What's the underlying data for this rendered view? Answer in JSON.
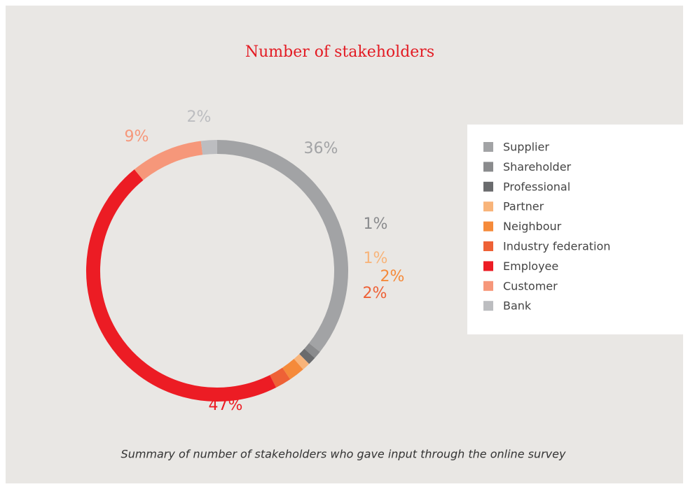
{
  "chart_data": {
    "type": "donut",
    "title": "Number of stakeholders",
    "categories": [
      "Supplier",
      "Shareholder",
      "Professional",
      "Partner",
      "Neighbour",
      "Industry federation",
      "Employee",
      "Customer",
      "Bank"
    ],
    "values": [
      36,
      1,
      1,
      1,
      2,
      2,
      47,
      9,
      2
    ],
    "value_labels": [
      "36%",
      "1%",
      null,
      "1%",
      "2%",
      "2%",
      "47%",
      "9%",
      "2%"
    ],
    "colors": [
      "#a2a3a5",
      "#8a8b8d",
      "#6a6b6d",
      "#f8b47a",
      "#f58a3a",
      "#ee6136",
      "#ec1c24",
      "#f6977a",
      "#bcbdc0"
    ],
    "legend": "right",
    "caption": "Summary of number of stakeholders who gave input through the online survey"
  }
}
